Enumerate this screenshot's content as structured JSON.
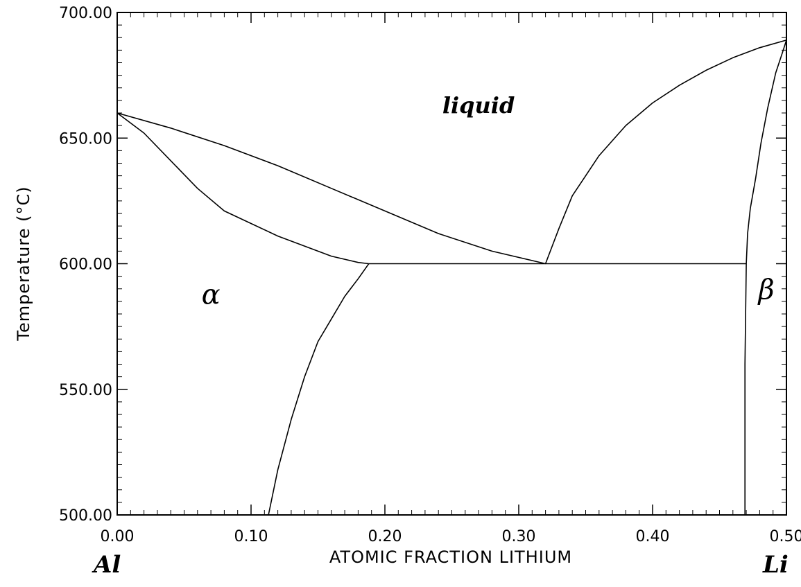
{
  "chart_data": {
    "type": "line",
    "title": "",
    "xlabel": "ATOMIC FRACTION LITHIUM",
    "ylabel": "Temperature (°C)",
    "xlim": [
      0,
      0.5
    ],
    "ylim": [
      500,
      700
    ],
    "x_ticks": [
      0.0,
      0.1,
      0.2,
      0.3,
      0.4,
      0.5
    ],
    "x_tick_labels": [
      "0.00",
      "0.10",
      "0.20",
      "0.30",
      "0.40",
      "0.50"
    ],
    "y_ticks": [
      500,
      550,
      600,
      650,
      700
    ],
    "y_tick_labels": [
      "500.00",
      "550.00",
      "600.00",
      "650.00",
      "700.00"
    ],
    "x_minor_step": 0.01,
    "y_minor_step": 5,
    "grid": false,
    "legend": "none",
    "element_labels": {
      "left": "Al",
      "right": "Li"
    },
    "region_labels": [
      {
        "text": "liquid",
        "x": 0.27,
        "y": 660
      },
      {
        "text": "α",
        "x": 0.07,
        "y": 584
      },
      {
        "text": "β",
        "x": 0.485,
        "y": 586
      }
    ],
    "series": [
      {
        "id": "liquidus-al",
        "points": [
          [
            0.0,
            660
          ],
          [
            0.04,
            654
          ],
          [
            0.08,
            647
          ],
          [
            0.12,
            639
          ],
          [
            0.16,
            630
          ],
          [
            0.2,
            621
          ],
          [
            0.24,
            612
          ],
          [
            0.28,
            605
          ],
          [
            0.32,
            600
          ]
        ]
      },
      {
        "id": "solidus-alpha",
        "points": [
          [
            0.0,
            660
          ],
          [
            0.02,
            652
          ],
          [
            0.04,
            641
          ],
          [
            0.06,
            630
          ],
          [
            0.08,
            621
          ],
          [
            0.1,
            616
          ],
          [
            0.12,
            611
          ],
          [
            0.14,
            607
          ],
          [
            0.16,
            603
          ],
          [
            0.18,
            600.5
          ],
          [
            0.188,
            600
          ]
        ]
      },
      {
        "id": "solvus-alpha",
        "points": [
          [
            0.113,
            500
          ],
          [
            0.12,
            518
          ],
          [
            0.13,
            538
          ],
          [
            0.14,
            555
          ],
          [
            0.15,
            569
          ],
          [
            0.16,
            578
          ],
          [
            0.17,
            587
          ],
          [
            0.18,
            594
          ],
          [
            0.188,
            600
          ]
        ]
      },
      {
        "id": "eutectic-line",
        "points": [
          [
            0.188,
            600
          ],
          [
            0.32,
            600
          ],
          [
            0.47,
            600
          ]
        ]
      },
      {
        "id": "liquidus-li",
        "points": [
          [
            0.32,
            600
          ],
          [
            0.33,
            614
          ],
          [
            0.34,
            627
          ],
          [
            0.36,
            643
          ],
          [
            0.38,
            655
          ],
          [
            0.4,
            664
          ],
          [
            0.42,
            671
          ],
          [
            0.44,
            677
          ],
          [
            0.46,
            682
          ],
          [
            0.48,
            686
          ],
          [
            0.5,
            689
          ]
        ]
      },
      {
        "id": "beta-solidus",
        "points": [
          [
            0.47,
            600
          ],
          [
            0.471,
            612
          ],
          [
            0.473,
            622
          ],
          [
            0.477,
            634
          ],
          [
            0.481,
            648
          ],
          [
            0.486,
            662
          ],
          [
            0.492,
            676
          ],
          [
            0.497,
            684
          ],
          [
            0.5,
            689
          ]
        ]
      },
      {
        "id": "beta-left-boundary",
        "points": [
          [
            0.469,
            500
          ],
          [
            0.469,
            560
          ],
          [
            0.47,
            600
          ]
        ]
      }
    ]
  }
}
